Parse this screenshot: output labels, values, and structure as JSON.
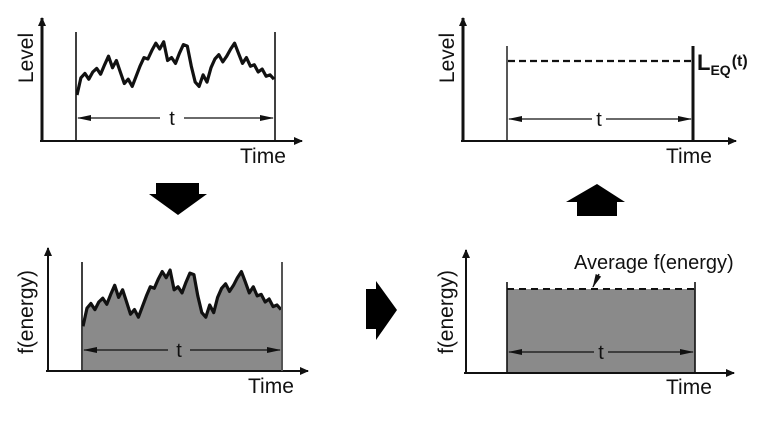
{
  "colors": {
    "ink": "#111111",
    "fill": "#8a8a8a",
    "background": "#ffffff"
  },
  "panels": {
    "top_left": {
      "y_label": "Level",
      "x_label": "Time",
      "interval_label": "t",
      "description": "Fluctuating sound level over interval t"
    },
    "bottom_left": {
      "y_label": "f(energy)",
      "x_label": "Time",
      "interval_label": "t",
      "description": "Energy function of level, shaded area over interval t"
    },
    "bottom_right": {
      "y_label": "f(energy)",
      "x_label": "Time",
      "interval_label": "t",
      "annotation": "Average f(energy)",
      "description": "Constant average energy over interval t"
    },
    "top_right": {
      "y_label": "Level",
      "x_label": "Time",
      "interval_label": "t",
      "result_label_main": "L",
      "result_label_sub": "EQ",
      "result_label_arg": "(t)",
      "description": "Equivalent continuous level over interval t"
    }
  },
  "flow_arrows": [
    {
      "from": "top_left",
      "to": "bottom_left",
      "direction": "down"
    },
    {
      "from": "bottom_left",
      "to": "bottom_right",
      "direction": "right"
    },
    {
      "from": "bottom_right",
      "to": "top_right",
      "direction": "up"
    }
  ],
  "waveform": {
    "note": "Normalized samples (0 = bottom, 1 = top) of the fluctuating level trace, left to right across interval t",
    "values": [
      0.18,
      0.42,
      0.48,
      0.4,
      0.5,
      0.55,
      0.47,
      0.6,
      0.72,
      0.56,
      0.66,
      0.5,
      0.34,
      0.4,
      0.3,
      0.44,
      0.58,
      0.7,
      0.68,
      0.8,
      0.9,
      0.82,
      0.92,
      0.66,
      0.7,
      0.62,
      0.76,
      0.88,
      0.86,
      0.58,
      0.36,
      0.3,
      0.46,
      0.36,
      0.56,
      0.68,
      0.74,
      0.64,
      0.72,
      0.82,
      0.9,
      0.76,
      0.62,
      0.7,
      0.58,
      0.6,
      0.5,
      0.54,
      0.44,
      0.46,
      0.4
    ]
  }
}
